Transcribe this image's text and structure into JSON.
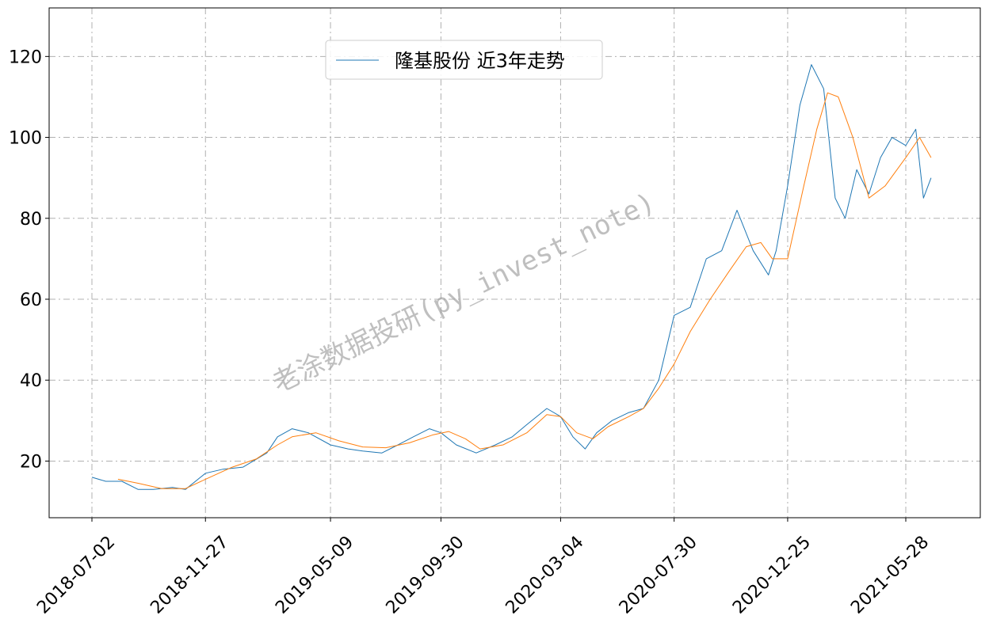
{
  "chart_data": {
    "type": "line",
    "title": "",
    "xlabel": "",
    "ylabel": "",
    "x_tick_labels": [
      "2018-07-02",
      "2018-11-27",
      "2019-05-09",
      "2019-09-30",
      "2020-03-04",
      "2020-07-30",
      "2020-12-25",
      "2021-05-28"
    ],
    "y_ticks": [
      20,
      40,
      60,
      80,
      100,
      120
    ],
    "ylim": [
      6,
      132
    ],
    "grid": true,
    "legend": {
      "placement": "top-center",
      "entries": [
        "隆基股份 近3年走势"
      ]
    },
    "watermark": "老涂数据投研(py_invest_note)",
    "colors": {
      "price": "#1f77b4",
      "moving_average": "#ff7f0e"
    },
    "series": [
      {
        "name": "隆基股份 近3年走势",
        "x": [
          "2018-07-02",
          "2018-07-20",
          "2018-08-10",
          "2018-08-31",
          "2018-09-20",
          "2018-10-15",
          "2018-11-01",
          "2018-11-27",
          "2018-12-20",
          "2019-01-15",
          "2019-02-15",
          "2019-03-01",
          "2019-03-20",
          "2019-04-10",
          "2019-05-09",
          "2019-06-01",
          "2019-06-20",
          "2019-07-15",
          "2019-08-05",
          "2019-08-25",
          "2019-09-15",
          "2019-09-30",
          "2019-10-20",
          "2019-11-15",
          "2019-12-10",
          "2020-01-01",
          "2020-01-20",
          "2020-02-15",
          "2020-03-04",
          "2020-03-20",
          "2020-04-05",
          "2020-04-20",
          "2020-05-10",
          "2020-06-01",
          "2020-06-20",
          "2020-07-10",
          "2020-07-30",
          "2020-08-20",
          "2020-09-10",
          "2020-09-30",
          "2020-10-20",
          "2020-11-10",
          "2020-11-30",
          "2020-12-10",
          "2020-12-25",
          "2021-01-10",
          "2021-01-25",
          "2021-02-10",
          "2021-02-25",
          "2021-03-10",
          "2021-03-25",
          "2021-04-10",
          "2021-04-25",
          "2021-05-10",
          "2021-05-28",
          "2021-06-10",
          "2021-06-20",
          "2021-06-30"
        ],
        "values": [
          16,
          15,
          15,
          13,
          13,
          13.5,
          13,
          17,
          18,
          18.5,
          22,
          26,
          28,
          27,
          24,
          23,
          22.5,
          22,
          24,
          26,
          28,
          27,
          24,
          22,
          24,
          26,
          29,
          33,
          31,
          26,
          23,
          27,
          30,
          32,
          33,
          40,
          56,
          58,
          70,
          72,
          82,
          72,
          66,
          72,
          88,
          108,
          118,
          112,
          85,
          80,
          92,
          86,
          95,
          100,
          98,
          102,
          85,
          90
        ]
      },
      {
        "name": "",
        "x": [
          "2018-08-05",
          "2018-09-01",
          "2018-10-01",
          "2018-11-01",
          "2018-11-27",
          "2019-01-01",
          "2019-02-01",
          "2019-03-01",
          "2019-03-20",
          "2019-04-20",
          "2019-05-20",
          "2019-06-20",
          "2019-07-20",
          "2019-08-20",
          "2019-09-20",
          "2019-10-10",
          "2019-11-01",
          "2019-11-20",
          "2019-12-20",
          "2020-01-20",
          "2020-02-15",
          "2020-03-04",
          "2020-03-25",
          "2020-04-15",
          "2020-05-05",
          "2020-06-01",
          "2020-06-20",
          "2020-07-10",
          "2020-07-30",
          "2020-08-20",
          "2020-09-15",
          "2020-10-10",
          "2020-11-01",
          "2020-11-20",
          "2020-12-05",
          "2020-12-25",
          "2021-01-15",
          "2021-02-01",
          "2021-02-15",
          "2021-03-01",
          "2021-03-20",
          "2021-04-10",
          "2021-05-01",
          "2021-05-28",
          "2021-06-15",
          "2021-06-30"
        ],
        "values": [
          15.5,
          14.5,
          13.2,
          13.2,
          15.5,
          18.5,
          20.5,
          24,
          26,
          27,
          25,
          23.5,
          23.3,
          24.5,
          26.5,
          27.3,
          25.5,
          23,
          24,
          27,
          31.5,
          31,
          27,
          25.5,
          28.5,
          31,
          33,
          38,
          44,
          52,
          60,
          67,
          73,
          74,
          70,
          70,
          88,
          102,
          111,
          110,
          100,
          85,
          88,
          95,
          100,
          95
        ]
      }
    ]
  }
}
